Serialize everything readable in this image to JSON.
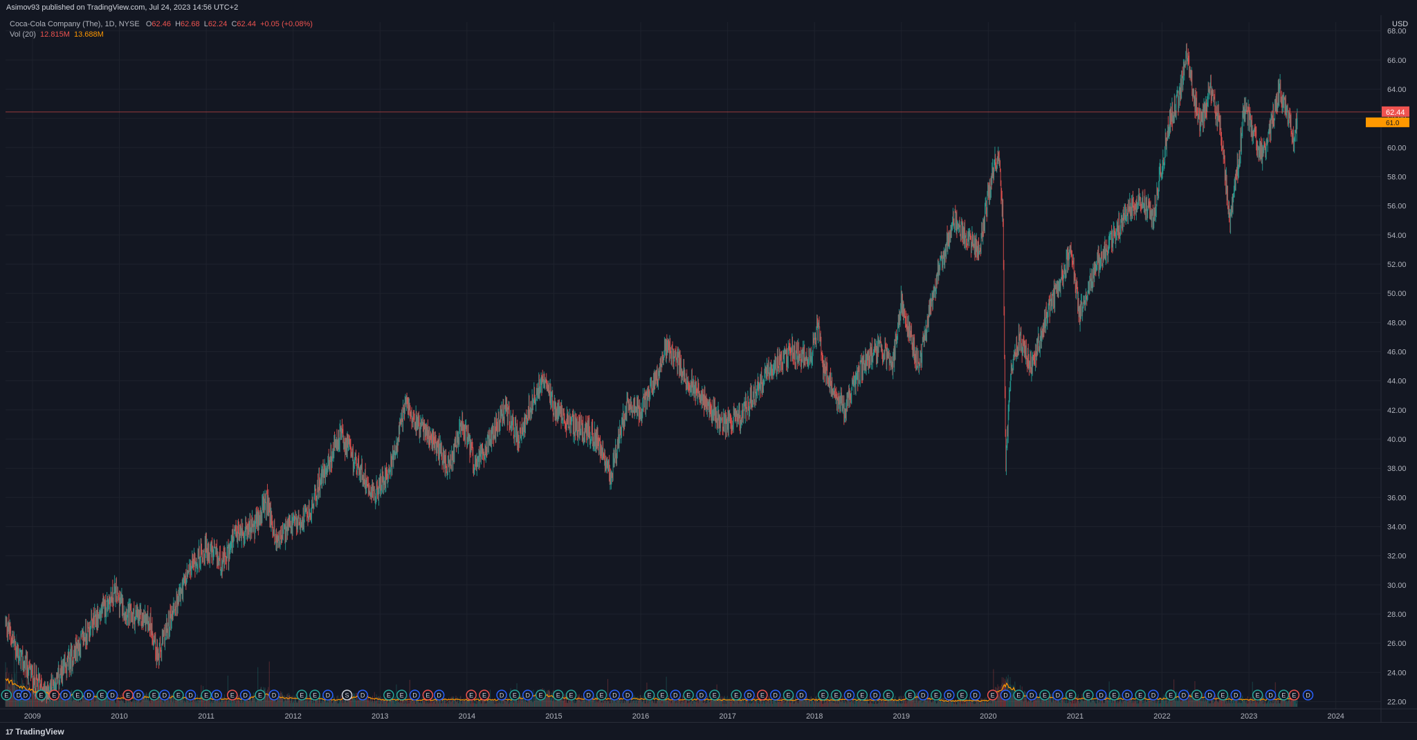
{
  "header": {
    "published_text": "Asimov93 published on TradingView.com, Jul 24, 2023 14:56 UTC+2"
  },
  "legend": {
    "symbol": "Coca-Cola Company (The), 1D, NYSE",
    "open_label": "O",
    "open": "62.46",
    "high_label": "H",
    "high": "62.68",
    "low_label": "L",
    "low": "62.24",
    "close_label": "C",
    "close": "62.44",
    "change": "+0.05 (+0.08%)",
    "vol_label": "Vol (20)",
    "vol_value": "12.815M",
    "vol_ma": "13.688M"
  },
  "footer": {
    "brand": "TradingView"
  },
  "colors": {
    "background": "#131722",
    "grid": "#1e222d",
    "up": "#26a69a",
    "down": "#ef5350",
    "price_line": "#ef5350",
    "volume_ma": "#ff9800",
    "event_dividend": "#2962ff",
    "event_earnings_up": "#26a69a",
    "event_earnings_down": "#ef5350"
  },
  "chart_data": {
    "type": "candlestick",
    "currency": "USD",
    "ylim": [
      21.5,
      68.6
    ],
    "y_ticks": [
      "22.00",
      "24.00",
      "26.00",
      "28.00",
      "30.00",
      "32.00",
      "34.00",
      "36.00",
      "38.00",
      "40.00",
      "42.00",
      "44.00",
      "46.00",
      "48.00",
      "50.00",
      "52.00",
      "54.00",
      "56.00",
      "58.00",
      "60.00",
      "62.00",
      "64.00",
      "66.00",
      "68.00"
    ],
    "x_ticks": [
      "2009",
      "2010",
      "2011",
      "2012",
      "2013",
      "2014",
      "2015",
      "2016",
      "2017",
      "2018",
      "2019",
      "2020",
      "2021",
      "2022",
      "2023",
      "2024"
    ],
    "xlim": [
      2008.69,
      2024.52
    ],
    "last_price": 62.44,
    "last_price_label": "62.44",
    "second_price_label": "61.0",
    "price_path": [
      [
        2008.69,
        27.5
      ],
      [
        2008.85,
        25.0
      ],
      [
        2009.15,
        22.5
      ],
      [
        2009.35,
        24.0
      ],
      [
        2009.6,
        26.5
      ],
      [
        2009.95,
        29.5
      ],
      [
        2010.1,
        28.0
      ],
      [
        2010.35,
        27.5
      ],
      [
        2010.45,
        25.0
      ],
      [
        2010.6,
        28.0
      ],
      [
        2010.85,
        31.5
      ],
      [
        2011.0,
        32.5
      ],
      [
        2011.2,
        31.5
      ],
      [
        2011.35,
        33.5
      ],
      [
        2011.55,
        34.0
      ],
      [
        2011.7,
        35.8
      ],
      [
        2011.8,
        33.0
      ],
      [
        2011.95,
        33.8
      ],
      [
        2012.2,
        35.0
      ],
      [
        2012.3,
        37.0
      ],
      [
        2012.55,
        40.3
      ],
      [
        2012.75,
        38.0
      ],
      [
        2012.95,
        36.2
      ],
      [
        2013.15,
        38.5
      ],
      [
        2013.3,
        42.5
      ],
      [
        2013.45,
        41.0
      ],
      [
        2013.65,
        39.5
      ],
      [
        2013.8,
        38.0
      ],
      [
        2013.95,
        41.0
      ],
      [
        2014.1,
        38.0
      ],
      [
        2014.25,
        40.0
      ],
      [
        2014.45,
        42.0
      ],
      [
        2014.6,
        40.0
      ],
      [
        2014.75,
        42.5
      ],
      [
        2014.9,
        44.5
      ],
      [
        2015.0,
        42.0
      ],
      [
        2015.2,
        41.0
      ],
      [
        2015.4,
        40.5
      ],
      [
        2015.55,
        39.5
      ],
      [
        2015.65,
        37.5
      ],
      [
        2015.85,
        42.5
      ],
      [
        2016.0,
        42.0
      ],
      [
        2016.2,
        44.5
      ],
      [
        2016.3,
        46.5
      ],
      [
        2016.45,
        45.0
      ],
      [
        2016.55,
        44.0
      ],
      [
        2016.75,
        42.5
      ],
      [
        2016.95,
        41.0
      ],
      [
        2017.15,
        41.5
      ],
      [
        2017.3,
        43.0
      ],
      [
        2017.45,
        44.5
      ],
      [
        2017.6,
        45.5
      ],
      [
        2017.75,
        46.0
      ],
      [
        2017.95,
        45.5
      ],
      [
        2018.05,
        48.0
      ],
      [
        2018.1,
        45.0
      ],
      [
        2018.25,
        43.0
      ],
      [
        2018.35,
        42.0
      ],
      [
        2018.55,
        45.0
      ],
      [
        2018.75,
        46.5
      ],
      [
        2018.9,
        45.0
      ],
      [
        2019.0,
        49.5
      ],
      [
        2019.1,
        47.0
      ],
      [
        2019.2,
        45.0
      ],
      [
        2019.35,
        49.5
      ],
      [
        2019.45,
        52.0
      ],
      [
        2019.6,
        55.0
      ],
      [
        2019.75,
        54.0
      ],
      [
        2019.9,
        53.0
      ],
      [
        2020.05,
        58.5
      ],
      [
        2020.12,
        59.5
      ],
      [
        2020.17,
        55.0
      ],
      [
        2020.2,
        38.0
      ],
      [
        2020.25,
        44.0
      ],
      [
        2020.35,
        47.0
      ],
      [
        2020.5,
        45.0
      ],
      [
        2020.7,
        49.0
      ],
      [
        2020.85,
        51.0
      ],
      [
        2020.95,
        53.0
      ],
      [
        2021.05,
        48.5
      ],
      [
        2021.25,
        52.0
      ],
      [
        2021.45,
        54.0
      ],
      [
        2021.6,
        55.5
      ],
      [
        2021.75,
        56.5
      ],
      [
        2021.9,
        55.0
      ],
      [
        2022.0,
        59.0
      ],
      [
        2022.1,
        62.0
      ],
      [
        2022.2,
        63.5
      ],
      [
        2022.28,
        66.5
      ],
      [
        2022.38,
        63.0
      ],
      [
        2022.45,
        61.5
      ],
      [
        2022.55,
        64.0
      ],
      [
        2022.65,
        62.0
      ],
      [
        2022.73,
        58.0
      ],
      [
        2022.78,
        55.0
      ],
      [
        2022.88,
        59.0
      ],
      [
        2022.95,
        63.0
      ],
      [
        2023.05,
        61.0
      ],
      [
        2023.15,
        59.5
      ],
      [
        2023.28,
        62.0
      ],
      [
        2023.35,
        64.0
      ],
      [
        2023.48,
        61.5
      ],
      [
        2023.52,
        60.0
      ],
      [
        2023.56,
        62.44
      ]
    ],
    "volume": {
      "ylim_millions": [
        0,
        90
      ],
      "ma_path_millions": [
        [
          2008.69,
          28
        ],
        [
          2008.8,
          22
        ],
        [
          2009.0,
          16
        ],
        [
          2009.3,
          12
        ],
        [
          2009.6,
          11
        ],
        [
          2010.0,
          9
        ],
        [
          2010.5,
          10
        ],
        [
          2011.0,
          8
        ],
        [
          2011.5,
          8
        ],
        [
          2011.65,
          14
        ],
        [
          2011.9,
          9
        ],
        [
          2012.5,
          7
        ],
        [
          2012.8,
          11
        ],
        [
          2013.0,
          7
        ],
        [
          2013.5,
          7
        ],
        [
          2014.5,
          7
        ],
        [
          2014.85,
          12
        ],
        [
          2015.2,
          8
        ],
        [
          2016.0,
          8
        ],
        [
          2017.0,
          7
        ],
        [
          2018.0,
          7
        ],
        [
          2019.0,
          7
        ],
        [
          2019.2,
          10
        ],
        [
          2019.5,
          6
        ],
        [
          2020.0,
          6
        ],
        [
          2020.2,
          22
        ],
        [
          2020.45,
          10
        ],
        [
          2021.0,
          8
        ],
        [
          2022.0,
          8
        ],
        [
          2022.3,
          11
        ],
        [
          2022.6,
          8
        ],
        [
          2023.0,
          7
        ],
        [
          2023.56,
          8
        ]
      ]
    },
    "events": [
      {
        "t": 2008.7,
        "k": "E"
      },
      {
        "t": 2008.84,
        "k": "D"
      },
      {
        "t": 2008.92,
        "k": "D"
      },
      {
        "t": 2009.1,
        "k": "E"
      },
      {
        "t": 2009.25,
        "k": "E",
        "c": "down"
      },
      {
        "t": 2009.38,
        "k": "D"
      },
      {
        "t": 2009.52,
        "k": "E"
      },
      {
        "t": 2009.65,
        "k": "D"
      },
      {
        "t": 2009.8,
        "k": "E"
      },
      {
        "t": 2009.92,
        "k": "D"
      },
      {
        "t": 2010.1,
        "k": "E",
        "c": "down"
      },
      {
        "t": 2010.22,
        "k": "D"
      },
      {
        "t": 2010.4,
        "k": "E"
      },
      {
        "t": 2010.52,
        "k": "D"
      },
      {
        "t": 2010.68,
        "k": "E"
      },
      {
        "t": 2010.82,
        "k": "D"
      },
      {
        "t": 2011.0,
        "k": "E"
      },
      {
        "t": 2011.12,
        "k": "D"
      },
      {
        "t": 2011.3,
        "k": "E",
        "c": "down"
      },
      {
        "t": 2011.45,
        "k": "D"
      },
      {
        "t": 2011.62,
        "k": "E"
      },
      {
        "t": 2011.78,
        "k": "D"
      },
      {
        "t": 2012.1,
        "k": "E"
      },
      {
        "t": 2012.25,
        "k": "E"
      },
      {
        "t": 2012.4,
        "k": "D"
      },
      {
        "t": 2012.62,
        "k": "S"
      },
      {
        "t": 2012.8,
        "k": "D"
      },
      {
        "t": 2013.1,
        "k": "E"
      },
      {
        "t": 2013.25,
        "k": "E"
      },
      {
        "t": 2013.4,
        "k": "D"
      },
      {
        "t": 2013.55,
        "k": "E",
        "c": "down"
      },
      {
        "t": 2013.68,
        "k": "D"
      },
      {
        "t": 2014.05,
        "k": "E",
        "c": "down"
      },
      {
        "t": 2014.2,
        "k": "E",
        "c": "down"
      },
      {
        "t": 2014.4,
        "k": "D"
      },
      {
        "t": 2014.55,
        "k": "E"
      },
      {
        "t": 2014.7,
        "k": "D"
      },
      {
        "t": 2014.85,
        "k": "E"
      },
      {
        "t": 2015.05,
        "k": "E"
      },
      {
        "t": 2015.2,
        "k": "E"
      },
      {
        "t": 2015.4,
        "k": "D"
      },
      {
        "t": 2015.55,
        "k": "E"
      },
      {
        "t": 2015.7,
        "k": "D"
      },
      {
        "t": 2015.85,
        "k": "D"
      },
      {
        "t": 2016.1,
        "k": "E"
      },
      {
        "t": 2016.25,
        "k": "E"
      },
      {
        "t": 2016.4,
        "k": "D"
      },
      {
        "t": 2016.55,
        "k": "E"
      },
      {
        "t": 2016.7,
        "k": "D"
      },
      {
        "t": 2016.85,
        "k": "E"
      },
      {
        "t": 2017.1,
        "k": "E"
      },
      {
        "t": 2017.25,
        "k": "D"
      },
      {
        "t": 2017.4,
        "k": "E",
        "c": "down"
      },
      {
        "t": 2017.55,
        "k": "D"
      },
      {
        "t": 2017.7,
        "k": "E"
      },
      {
        "t": 2017.85,
        "k": "D"
      },
      {
        "t": 2018.1,
        "k": "E"
      },
      {
        "t": 2018.25,
        "k": "E"
      },
      {
        "t": 2018.4,
        "k": "D"
      },
      {
        "t": 2018.55,
        "k": "E"
      },
      {
        "t": 2018.7,
        "k": "D"
      },
      {
        "t": 2018.85,
        "k": "E"
      },
      {
        "t": 2019.1,
        "k": "E"
      },
      {
        "t": 2019.25,
        "k": "D"
      },
      {
        "t": 2019.4,
        "k": "E"
      },
      {
        "t": 2019.55,
        "k": "D"
      },
      {
        "t": 2019.7,
        "k": "E"
      },
      {
        "t": 2019.85,
        "k": "D"
      },
      {
        "t": 2020.05,
        "k": "E",
        "c": "down"
      },
      {
        "t": 2020.2,
        "k": "D"
      },
      {
        "t": 2020.35,
        "k": "E"
      },
      {
        "t": 2020.5,
        "k": "D"
      },
      {
        "t": 2020.65,
        "k": "E"
      },
      {
        "t": 2020.8,
        "k": "D"
      },
      {
        "t": 2020.95,
        "k": "E"
      },
      {
        "t": 2021.15,
        "k": "E"
      },
      {
        "t": 2021.3,
        "k": "D"
      },
      {
        "t": 2021.45,
        "k": "E"
      },
      {
        "t": 2021.6,
        "k": "D"
      },
      {
        "t": 2021.75,
        "k": "E"
      },
      {
        "t": 2021.9,
        "k": "D"
      },
      {
        "t": 2022.1,
        "k": "E"
      },
      {
        "t": 2022.25,
        "k": "D"
      },
      {
        "t": 2022.4,
        "k": "E"
      },
      {
        "t": 2022.55,
        "k": "D"
      },
      {
        "t": 2022.7,
        "k": "E"
      },
      {
        "t": 2022.85,
        "k": "D"
      },
      {
        "t": 2023.1,
        "k": "E"
      },
      {
        "t": 2023.25,
        "k": "D"
      },
      {
        "t": 2023.4,
        "k": "E"
      },
      {
        "t": 2023.52,
        "k": "E",
        "c": "down"
      },
      {
        "t": 2023.68,
        "k": "D"
      }
    ]
  }
}
